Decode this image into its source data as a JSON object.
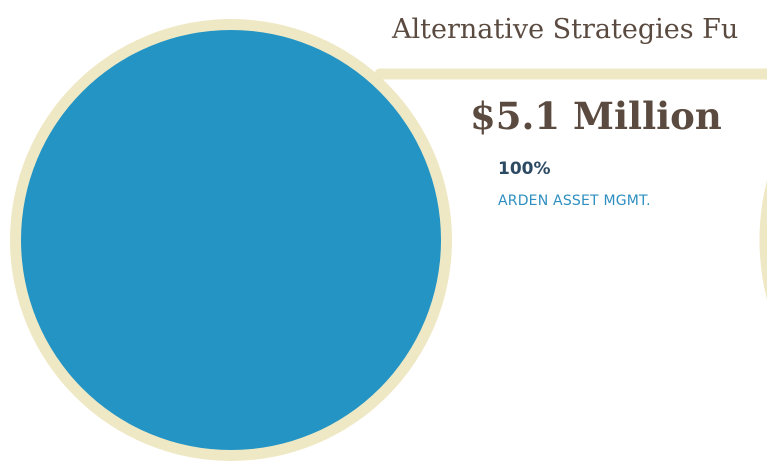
{
  "fund": {
    "title": "Alternative Strategies Fu",
    "total": "$5.1 Million"
  },
  "colors": {
    "ring": "#efe8c4",
    "slice": "#2394c4",
    "text_brown": "#5a4a3f",
    "text_navy": "#2d4a63",
    "text_blue": "#2e8fc0"
  },
  "chart_data": {
    "type": "pie",
    "title": "Alternative Strategies Fu",
    "total_label": "$5.1 Million",
    "slices": [
      {
        "label": "ARDEN ASSET MGMT.",
        "value": 100,
        "display": "100%"
      }
    ]
  }
}
